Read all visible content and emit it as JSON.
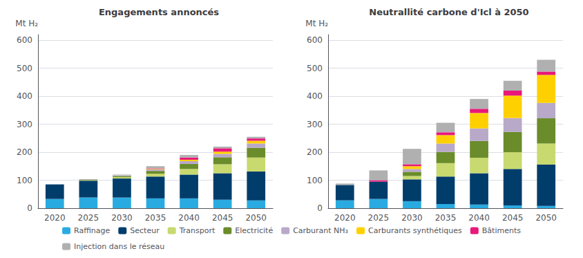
{
  "chart_data": [
    {
      "type": "bar",
      "title": "Engagements annoncés",
      "ylabel": "Mt H₂",
      "categories": [
        "2020",
        "2025",
        "2030",
        "2035",
        "2040",
        "2045",
        "2050"
      ],
      "stacked": true,
      "grid": true,
      "legend": "bottom",
      "ylim": [
        0,
        620
      ],
      "yticks": [
        0,
        100,
        200,
        300,
        400,
        500,
        600
      ],
      "series": [
        {
          "name": "Raffinage",
          "color": "#29abe2",
          "values": [
            33,
            38,
            38,
            35,
            35,
            30,
            28
          ]
        },
        {
          "name": "Secteur",
          "color": "#003d6b",
          "values": [
            52,
            60,
            68,
            78,
            85,
            95,
            103
          ]
        },
        {
          "name": "Transport",
          "color": "#c8d96f",
          "values": [
            0,
            2,
            5,
            10,
            20,
            32,
            50
          ]
        },
        {
          "name": "Electricité",
          "color": "#6a8c2a",
          "values": [
            0,
            1,
            4,
            10,
            18,
            25,
            35
          ]
        },
        {
          "name": "Carburant NH₃",
          "color": "#b8a9c9",
          "values": [
            0,
            0,
            2,
            5,
            10,
            12,
            15
          ]
        },
        {
          "name": "Carburants synthétiques",
          "color": "#ffd000",
          "values": [
            0,
            0,
            0,
            2,
            5,
            8,
            10
          ]
        },
        {
          "name": "Bâtiments",
          "color": "#e8187a",
          "values": [
            0,
            0,
            0,
            2,
            8,
            12,
            8
          ]
        },
        {
          "name": "Injection dans le réseau",
          "color": "#b0b0b0",
          "values": [
            0,
            3,
            3,
            8,
            9,
            6,
            6
          ]
        }
      ]
    },
    {
      "type": "bar",
      "title": "Neutrallité carbone d'Icl à 2050",
      "ylabel": "Mt H₂",
      "categories": [
        "2020",
        "2025",
        "2030",
        "2035",
        "2040",
        "2045",
        "2050"
      ],
      "stacked": true,
      "grid": true,
      "legend": "bottom",
      "ylim": [
        0,
        620
      ],
      "yticks": [
        0,
        100,
        200,
        300,
        400,
        500,
        600
      ],
      "series": [
        {
          "name": "Raffinage",
          "color": "#29abe2",
          "values": [
            28,
            33,
            25,
            15,
            13,
            10,
            8
          ]
        },
        {
          "name": "Secteur",
          "color": "#003d6b",
          "values": [
            55,
            62,
            78,
            98,
            112,
            130,
            148
          ]
        },
        {
          "name": "Transport",
          "color": "#c8d96f",
          "values": [
            0,
            0,
            12,
            48,
            55,
            60,
            75
          ]
        },
        {
          "name": "Electricité",
          "color": "#6a8c2a",
          "values": [
            0,
            0,
            15,
            40,
            60,
            72,
            90
          ]
        },
        {
          "name": "Carburant NH₃",
          "color": "#b8a9c9",
          "values": [
            0,
            0,
            10,
            30,
            45,
            50,
            55
          ]
        },
        {
          "name": "Carburants synthétiques",
          "color": "#ffd000",
          "values": [
            0,
            0,
            10,
            30,
            55,
            80,
            100
          ]
        },
        {
          "name": "Bâtiments",
          "color": "#e8187a",
          "values": [
            0,
            5,
            7,
            10,
            15,
            18,
            12
          ]
        },
        {
          "name": "Injection dans le réseau",
          "color": "#b0b0b0",
          "values": [
            5,
            35,
            55,
            34,
            35,
            35,
            42
          ]
        }
      ]
    }
  ]
}
